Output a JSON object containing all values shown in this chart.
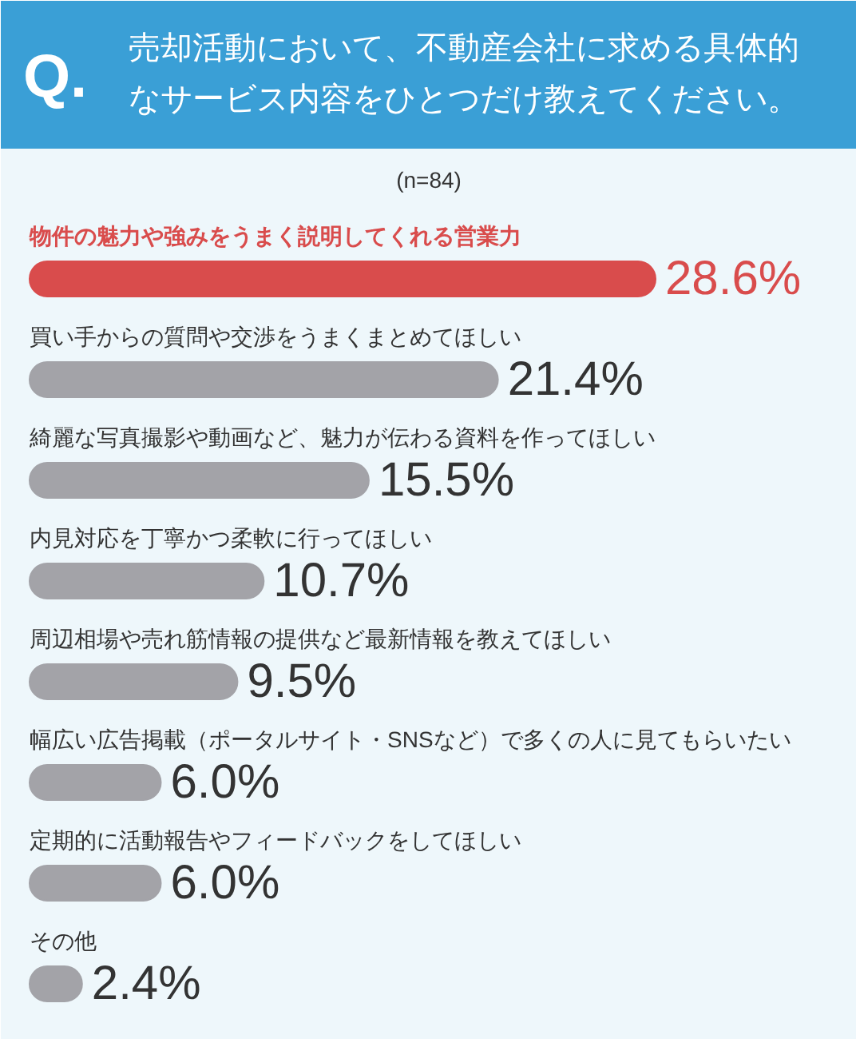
{
  "chart_data": {
    "type": "bar",
    "orientation": "horizontal",
    "tick_labels": false,
    "title": "売却活動において、不動産会社に求める具体的なサービス内容をひとつだけ教えてください。",
    "subtitle": "(n=84)",
    "annotations": [
      "Q."
    ],
    "categories": [
      "物件の魅力や強みをうまく説明してくれる営業力",
      "買い手からの質問や交渉をうまくまとめてほしい",
      "綺麗な写真撮影や動画など、魅力が伝わる資料を作ってほしい",
      "内見対応を丁寧かつ柔軟に行ってほしい",
      "周辺相場や売れ筋情報の提供など最新情報を教えてほしい",
      "幅広い広告掲載（ポータルサイト・SNSなど）で多くの人に見てもらいたい",
      "定期的に活動報告やフィードバックをしてほしい",
      "その他"
    ],
    "values": [
      28.6,
      21.4,
      15.5,
      10.7,
      9.5,
      6.0,
      6.0,
      2.4
    ],
    "value_labels": [
      "28.6%",
      "21.4%",
      "15.5%",
      "10.7%",
      "9.5%",
      "6.0%",
      "6.0%",
      "2.4%"
    ],
    "colors": [
      "#d94c4c",
      "#a3a3a8",
      "#a3a3a8",
      "#a3a3a8",
      "#a3a3a8",
      "#a3a3a8",
      "#a3a3a8",
      "#a3a3a8"
    ]
  }
}
